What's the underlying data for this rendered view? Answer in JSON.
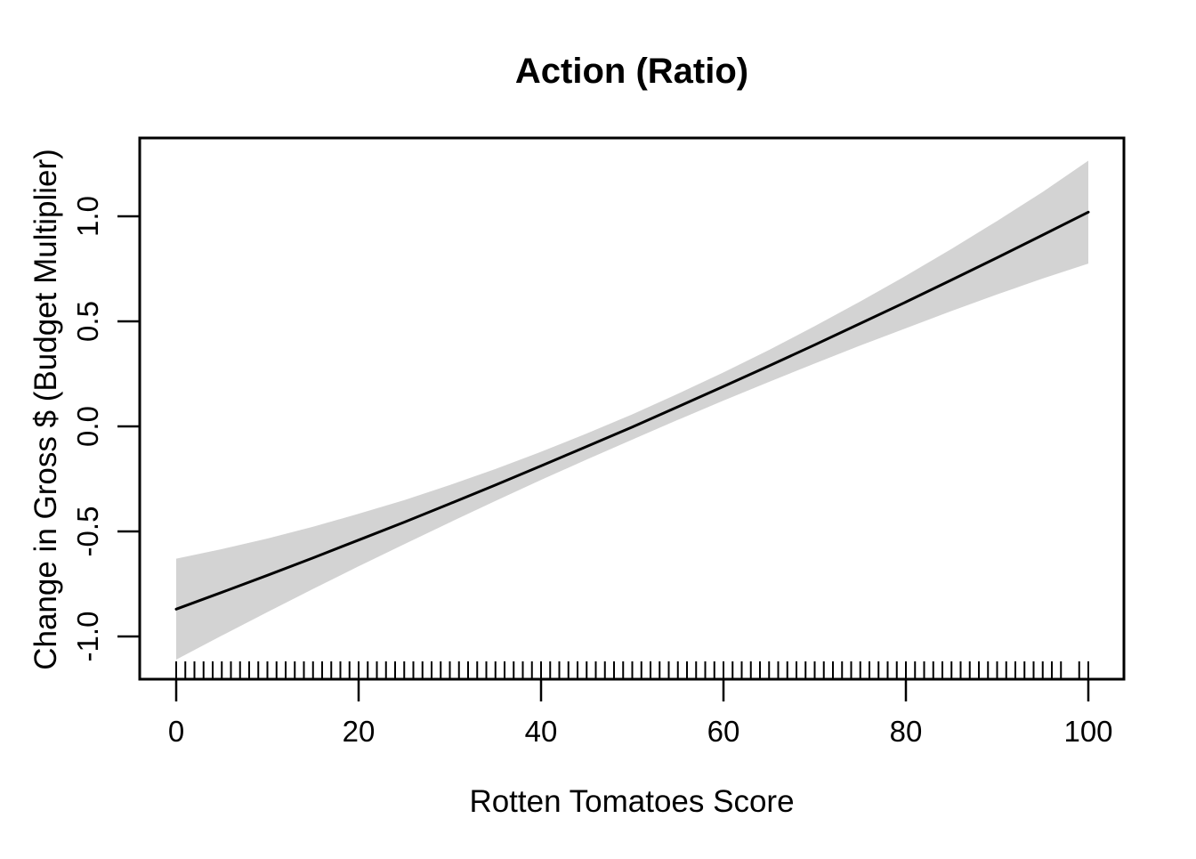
{
  "figure": {
    "title": "Action (Ratio)",
    "xlabel": "Rotten Tomatoes Score",
    "ylabel": "Change in Gross $ (Budget Multiplier)"
  },
  "colors": {
    "background": "#FFFFFF",
    "band": "#D3D3D3",
    "line": "#000000",
    "axis": "#000000",
    "text": "#000000"
  },
  "chart_data": {
    "type": "line",
    "title": "Action (Ratio)",
    "xlabel": "Rotten Tomatoes Score",
    "ylabel": "Change in Gross $ (Budget Multiplier)",
    "xlim": [
      0,
      100
    ],
    "ylim": [
      -1.2,
      1.37
    ],
    "grid": false,
    "legend": false,
    "x_ticks": [
      0,
      20,
      40,
      60,
      80,
      100
    ],
    "x_tick_labels": [
      "0",
      "20",
      "40",
      "60",
      "80",
      "100"
    ],
    "y_ticks": [
      -1.0,
      -0.5,
      0.0,
      0.5,
      1.0
    ],
    "y_tick_labels": [
      "-1.0",
      "-0.5",
      "0.0",
      "0.5",
      "1.0"
    ],
    "x": [
      0,
      5,
      10,
      15,
      20,
      25,
      30,
      35,
      40,
      45,
      50,
      55,
      60,
      65,
      70,
      75,
      80,
      85,
      90,
      95,
      100
    ],
    "series": [
      {
        "name": "gam-fit",
        "values": [
          -0.87,
          -0.79,
          -0.709,
          -0.626,
          -0.541,
          -0.456,
          -0.368,
          -0.279,
          -0.188,
          -0.096,
          -0.003,
          0.093,
          0.19,
          0.288,
          0.388,
          0.49,
          0.592,
          0.697,
          0.803,
          0.911,
          1.02
        ]
      },
      {
        "name": "ci-upper",
        "values": [
          -0.63,
          -0.584,
          -0.534,
          -0.478,
          -0.416,
          -0.351,
          -0.279,
          -0.203,
          -0.121,
          -0.034,
          0.057,
          0.155,
          0.257,
          0.364,
          0.477,
          0.595,
          0.717,
          0.845,
          0.978,
          1.116,
          1.265
        ]
      },
      {
        "name": "ci-lower",
        "values": [
          -1.11,
          -0.996,
          -0.884,
          -0.774,
          -0.666,
          -0.561,
          -0.457,
          -0.355,
          -0.255,
          -0.158,
          -0.063,
          0.031,
          0.123,
          0.212,
          0.299,
          0.385,
          0.467,
          0.549,
          0.628,
          0.704,
          0.775
        ]
      }
    ],
    "rug_x": [
      0,
      1,
      2,
      3,
      4,
      5,
      6,
      7,
      8,
      9,
      10,
      11,
      12,
      13,
      14,
      15,
      16,
      17,
      18,
      19,
      20,
      21,
      22,
      23,
      24,
      25,
      26,
      27,
      28,
      29,
      30,
      31,
      32,
      33,
      34,
      35,
      36,
      37,
      38,
      39,
      40,
      41,
      42,
      43,
      44,
      45,
      46,
      47,
      48,
      49,
      50,
      51,
      52,
      53,
      54,
      55,
      56,
      57,
      58,
      59,
      60,
      61,
      62,
      63,
      64,
      65,
      66,
      67,
      68,
      69,
      70,
      71,
      72,
      73,
      74,
      75,
      76,
      77,
      78,
      79,
      80,
      81,
      82,
      83,
      84,
      85,
      86,
      87,
      88,
      89,
      90,
      91,
      92,
      93,
      94,
      95,
      96,
      97,
      99,
      100
    ]
  }
}
